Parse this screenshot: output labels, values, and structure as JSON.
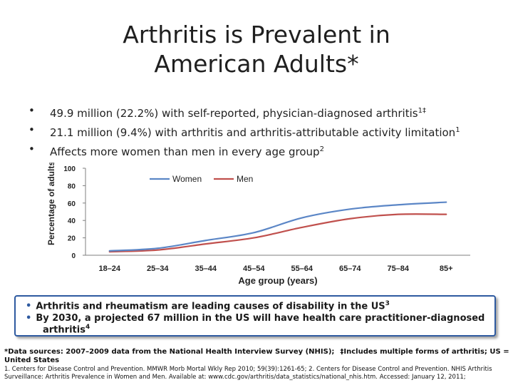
{
  "slide": {
    "title_line1": "Arthritis is Prevalent in",
    "title_line2": "American Adults*",
    "bullet_symbol": "•",
    "bullets": [
      {
        "text": "49.9 million (22.2%) with self-reported, physician-diagnosed arthritis",
        "sup": "1‡"
      },
      {
        "text": "21.1 million (9.4%) with arthritis and arthritis-attributable activity limitation",
        "sup": "1"
      },
      {
        "text": "Affects more women than men in every age group",
        "sup": "2"
      }
    ]
  },
  "callout": {
    "line1": "Arthritis and rheumatism are leading causes of disability in the US",
    "line1_sup": "3",
    "line2": "By 2030, a projected 67 million in the US will have health care practitioner-diagnosed",
    "line3": "arthritis",
    "line3_sup": "4"
  },
  "footnotes": {
    "data_sources": "*Data sources: 2007–2009 data from the National Health Interview Survey (NHIS);",
    "includes": "‡Includes multiple forms of arthritis; US = United States",
    "references": "1. Centers for Disease Control and Prevention. MMWR Morb Mortal Wkly Rep 2010; 59(39):1261-65; 2. Centers for Disease Control and Prevention. NHIS Arthritis Surveillance: Arthritis Prevalence in Women and Men. Available at: www.cdc.gov/arthritis/data_statistics/national_nhis.htm. Accessed: January 12, 2011;"
  },
  "colors": {
    "women": "#5b86c6",
    "men": "#c0504d",
    "axis": "#7f7f7f",
    "callout_border": "#2e5aa0"
  },
  "chart_data": {
    "type": "line",
    "title": "",
    "xlabel": "Age group (years)",
    "ylabel": "Percentage of adults",
    "categories": [
      "18–24",
      "25–34",
      "35–44",
      "45–54",
      "55–64",
      "65–74",
      "75–84",
      "85+"
    ],
    "ylim": [
      0,
      100
    ],
    "yticks": [
      0,
      20,
      40,
      60,
      80,
      100
    ],
    "legend_position": "top-center",
    "grid": false,
    "series": [
      {
        "name": "Women",
        "color": "#5b86c6",
        "values": [
          5,
          8,
          17,
          26,
          43,
          53,
          58,
          61
        ]
      },
      {
        "name": "Men",
        "color": "#c0504d",
        "values": [
          4,
          6,
          13,
          20,
          32,
          42,
          47,
          47
        ]
      }
    ]
  }
}
